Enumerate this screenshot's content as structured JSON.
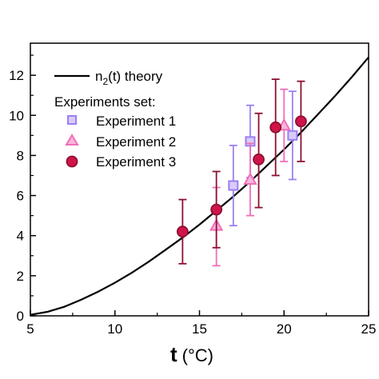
{
  "chart_data": {
    "type": "scatter",
    "xlabel": "t (°C)",
    "xlabel_bold": "t",
    "xlabel_unit": "(°C)",
    "ylabel": "",
    "xlim": [
      5,
      25
    ],
    "ylim": [
      0,
      13.6
    ],
    "xticks": [
      5,
      10,
      15,
      20,
      25
    ],
    "yticks": [
      0,
      2,
      4,
      6,
      8,
      10,
      12
    ],
    "legend_placement": "top-left",
    "legend": {
      "theory_label_main": "n",
      "theory_label_sub": "2",
      "theory_label_rest": "(t) theory",
      "experiments_header": "Experiments set:"
    },
    "theory": {
      "name": "n2(t) theory",
      "color": "#000000",
      "x": [
        5,
        6,
        7,
        8,
        9,
        10,
        11,
        12,
        13,
        14,
        15,
        16,
        17,
        18,
        19,
        20,
        21,
        22,
        23,
        24,
        25
      ],
      "y": [
        0.05,
        0.2,
        0.45,
        0.8,
        1.2,
        1.65,
        2.15,
        2.7,
        3.3,
        3.9,
        4.55,
        5.25,
        5.95,
        6.7,
        7.5,
        8.3,
        9.15,
        10.05,
        10.95,
        11.9,
        12.9
      ]
    },
    "series": [
      {
        "name": "Experiment 1",
        "marker": "square",
        "color": "#9c7ff2",
        "fill": "#d8ccfa",
        "points": [
          {
            "x": 17,
            "y": 6.5,
            "err_low": 4.5,
            "err_high": 8.5
          },
          {
            "x": 18,
            "y": 8.7,
            "err_low": 6.9,
            "err_high": 10.5
          },
          {
            "x": 20.5,
            "y": 9.0,
            "err_low": 6.8,
            "err_high": 11.2
          }
        ]
      },
      {
        "name": "Experiment 2",
        "marker": "triangle",
        "color": "#f06fb8",
        "fill": "#f7b6da",
        "points": [
          {
            "x": 16,
            "y": 4.5,
            "err_low": 2.5,
            "err_high": 6.4
          },
          {
            "x": 18,
            "y": 6.8,
            "err_low": 5.0,
            "err_high": 8.6
          },
          {
            "x": 20,
            "y": 9.5,
            "err_low": 7.7,
            "err_high": 11.3
          }
        ]
      },
      {
        "name": "Experiment 3",
        "marker": "circle",
        "color": "#8c1030",
        "fill": "#d0144a",
        "points": [
          {
            "x": 14,
            "y": 4.2,
            "err_low": 2.6,
            "err_high": 5.8
          },
          {
            "x": 16,
            "y": 5.3,
            "err_low": 3.4,
            "err_high": 7.2
          },
          {
            "x": 18.5,
            "y": 7.8,
            "err_low": 5.4,
            "err_high": 10.1
          },
          {
            "x": 19.5,
            "y": 9.4,
            "err_low": 7.0,
            "err_high": 11.8
          },
          {
            "x": 21,
            "y": 9.7,
            "err_low": 7.7,
            "err_high": 11.7
          }
        ]
      }
    ]
  }
}
